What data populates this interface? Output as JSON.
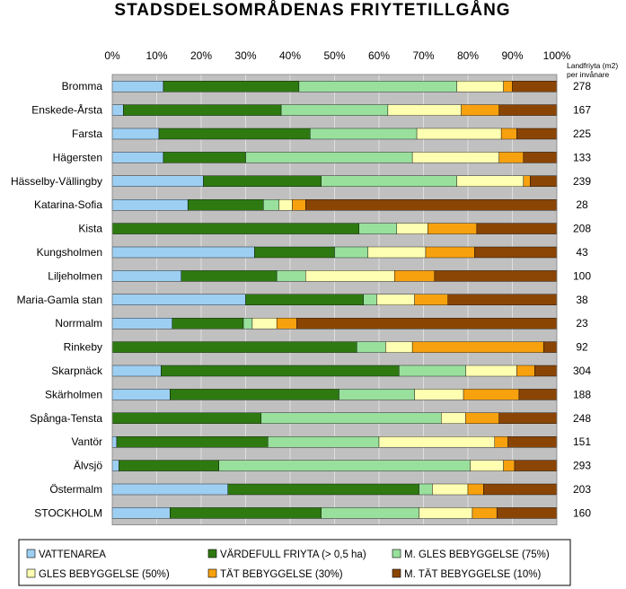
{
  "chart_data": {
    "type": "bar",
    "stacked": true,
    "orientation": "horizontal",
    "percent_stacked": true,
    "title": "STADSDELSOMRÅDENAS FRIYTETILLGÅNG",
    "xlim": [
      0,
      100
    ],
    "x_ticks": [
      "0%",
      "10%",
      "20%",
      "30%",
      "40%",
      "50%",
      "60%",
      "70%",
      "80%",
      "90%",
      "100%"
    ],
    "grid": true,
    "legend_position": "bottom",
    "value_column_header": "Landfriyta (m2) per invånare",
    "categories": [
      "Bromma",
      "Enskede-Årsta",
      "Farsta",
      "Hägersten",
      "Hässelby-Vällingby",
      "Katarina-Sofia",
      "Kista",
      "Kungsholmen",
      "Liljeholmen",
      "Maria-Gamla stan",
      "Norrmalm",
      "Rinkeby",
      "Skarpnäck",
      "Skärholmen",
      "Spånga-Tensta",
      "Vantör",
      "Älvsjö",
      "Östermalm",
      "STOCKHOLM"
    ],
    "values_per_inhabitant": [
      "278",
      "167",
      "225",
      "133",
      "239",
      "28",
      "208",
      "43",
      "100",
      "38",
      "23",
      "92",
      "304",
      "188",
      "248",
      "151",
      "293",
      "203",
      "160"
    ],
    "series": [
      {
        "name": "VATTENAREA",
        "color": "#9dcff3",
        "values": [
          11.5,
          2.5,
          10.5,
          11.5,
          20.5,
          17.0,
          0,
          32.0,
          15.5,
          30.0,
          13.5,
          0,
          11.0,
          13.0,
          0,
          1.0,
          1.5,
          26.0,
          13.0
        ]
      },
      {
        "name": "VÄRDEFULL FRIYTA (> 0,5 ha)",
        "color": "#2e7a11",
        "values": [
          30.5,
          35.5,
          34.0,
          18.5,
          26.5,
          17.0,
          55.5,
          18.0,
          21.5,
          26.5,
          16.0,
          55.0,
          53.5,
          38.0,
          33.5,
          34.0,
          22.5,
          43.0,
          34.0
        ]
      },
      {
        "name": "M. GLES BEBYGGELSE (75%)",
        "color": "#99e09d",
        "values": [
          35.5,
          24.0,
          24.0,
          37.5,
          30.5,
          3.5,
          8.5,
          7.5,
          6.5,
          3.0,
          2.0,
          6.5,
          15.0,
          17.0,
          40.5,
          25.0,
          56.5,
          3.0,
          22.0
        ]
      },
      {
        "name": "GLES BEBYGGELSE (50%)",
        "color": "#ffffb2",
        "values": [
          10.5,
          16.5,
          19.0,
          19.5,
          15.0,
          3.0,
          7.0,
          13.0,
          20.0,
          8.5,
          5.5,
          6.0,
          11.5,
          11.0,
          5.5,
          26.0,
          7.5,
          8.0,
          12.0
        ]
      },
      {
        "name": "TÄT BEBYGGELSE (30%)",
        "color": "#f7a10f",
        "values": [
          2.0,
          8.5,
          3.5,
          5.5,
          1.5,
          3.0,
          11.0,
          11.0,
          9.0,
          7.5,
          4.5,
          29.5,
          4.0,
          12.5,
          7.5,
          3.0,
          2.5,
          3.5,
          5.5
        ]
      },
      {
        "name": "M. TÄT BEBYGGELSE (10%)",
        "color": "#8a4505",
        "values": [
          10.0,
          13.0,
          9.0,
          7.5,
          6.0,
          56.5,
          18.0,
          18.5,
          27.5,
          24.5,
          58.5,
          3.0,
          5.0,
          8.5,
          13.0,
          11.0,
          9.5,
          16.5,
          13.5
        ]
      }
    ]
  }
}
